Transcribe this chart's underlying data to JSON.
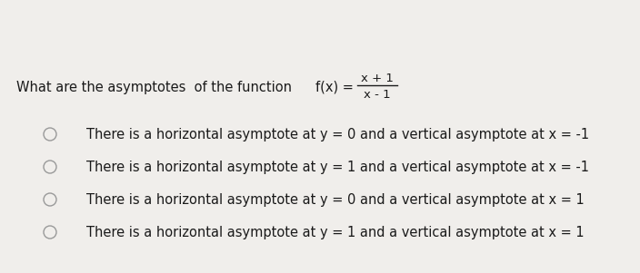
{
  "bg_color": "#f0eeeb",
  "text_color": "#1a1a1a",
  "question_prefix": "What are the asymptotes  of the function ",
  "fx_label": "f(x) = ",
  "function_numerator": "x + 1",
  "function_denominator": "x - 1",
  "options": [
    "There is a horizontal asymptote at y = 0 and a vertical asymptote at x = -1",
    "There is a horizontal asymptote at y = 1 and a vertical asymptote at x = -1",
    "There is a horizontal asymptote at y = 0 and a vertical asymptote at x = 1",
    "There is a horizontal asymptote at y = 1 and a vertical asymptote at x = 1"
  ],
  "circle_color": "#999999",
  "question_fontsize": 10.5,
  "option_fontsize": 10.5,
  "figsize": [
    7.04,
    3.01
  ],
  "dpi": 100
}
